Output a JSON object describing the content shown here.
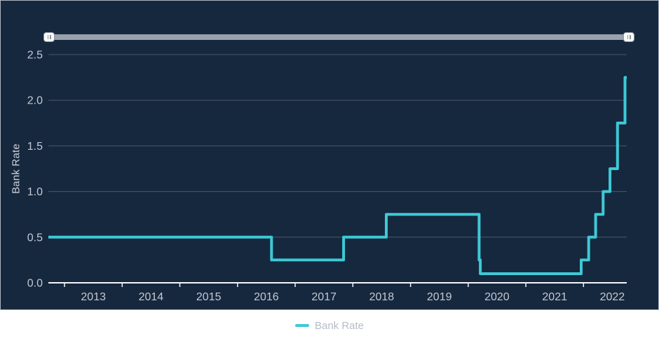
{
  "chart_data": {
    "type": "line",
    "step": true,
    "title": "",
    "xlabel": "",
    "ylabel": "Bank Rate",
    "x_range": [
      2012.72,
      2022.75
    ],
    "y_range": [
      0,
      2.5
    ],
    "grid": true,
    "legend_position": "bottom",
    "y_ticks": [
      {
        "value": 0,
        "label": "0.0"
      },
      {
        "value": 0.5,
        "label": "0.5"
      },
      {
        "value": 1,
        "label": "1.0"
      },
      {
        "value": 1.5,
        "label": "1.5"
      },
      {
        "value": 2,
        "label": "2.0"
      },
      {
        "value": 2.5,
        "label": "2.5"
      }
    ],
    "x_ticks": [
      2013,
      2014,
      2015,
      2016,
      2017,
      2018,
      2019,
      2020,
      2021,
      2022
    ],
    "series": [
      {
        "name": "Bank Rate",
        "color": "#3EC9D6",
        "points": [
          [
            2012.72,
            0.5
          ],
          [
            2016.59,
            0.5
          ],
          [
            2016.59,
            0.25
          ],
          [
            2017.84,
            0.25
          ],
          [
            2017.84,
            0.5
          ],
          [
            2018.58,
            0.5
          ],
          [
            2018.58,
            0.75
          ],
          [
            2020.19,
            0.75
          ],
          [
            2020.19,
            0.25
          ],
          [
            2020.21,
            0.25
          ],
          [
            2020.21,
            0.1
          ],
          [
            2021.96,
            0.1
          ],
          [
            2021.96,
            0.25
          ],
          [
            2022.09,
            0.25
          ],
          [
            2022.09,
            0.5
          ],
          [
            2022.21,
            0.5
          ],
          [
            2022.21,
            0.75
          ],
          [
            2022.34,
            0.75
          ],
          [
            2022.34,
            1.0
          ],
          [
            2022.46,
            1.0
          ],
          [
            2022.46,
            1.25
          ],
          [
            2022.59,
            1.25
          ],
          [
            2022.59,
            1.75
          ],
          [
            2022.72,
            1.75
          ],
          [
            2022.72,
            2.25
          ],
          [
            2022.75,
            2.25
          ]
        ]
      }
    ]
  },
  "legend": {
    "items": [
      {
        "label": "Bank Rate",
        "color": "#3EC9D6"
      }
    ]
  },
  "icons": {
    "slider_grip": "||"
  },
  "colors": {
    "panel_bg": "#16283E",
    "panel_border": "#AEB5C0",
    "line": "#3EC9D6",
    "grid": "#4A576B",
    "axis": "#F2F4F7",
    "tick_label": "#C3C9D4",
    "axis_title": "#CDD2DC",
    "legend_text": "#B6BCC6",
    "slider_track": "#99A1AD",
    "slider_handle": "#FAFAFA"
  }
}
